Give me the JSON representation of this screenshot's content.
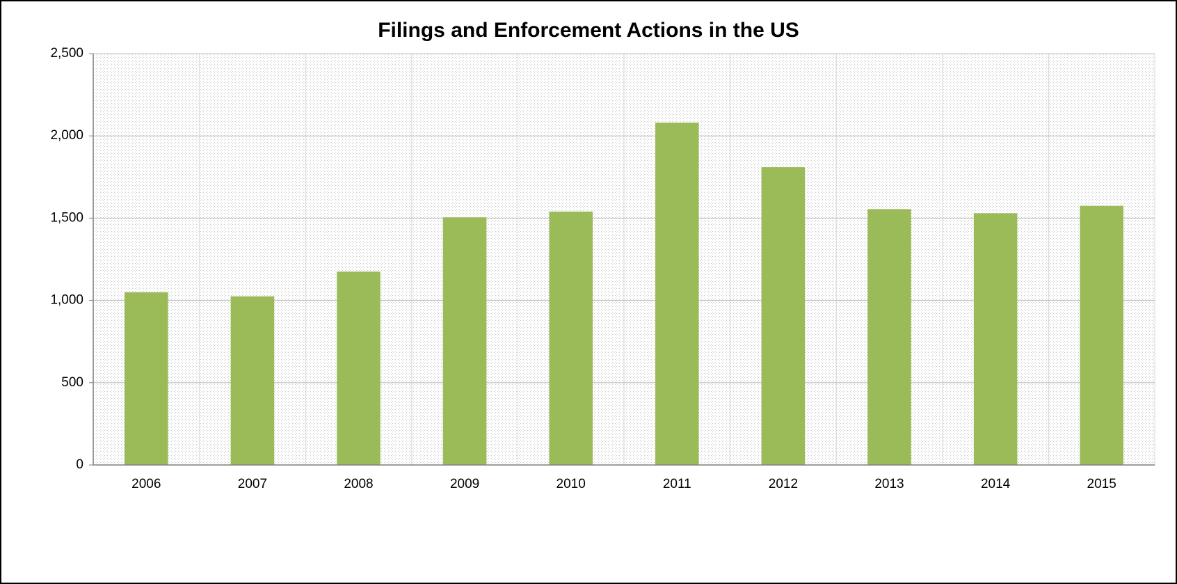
{
  "chart_data": {
    "type": "bar",
    "title": "Filings and Enforcement Actions in the US",
    "categories": [
      "2006",
      "2007",
      "2008",
      "2009",
      "2010",
      "2011",
      "2012",
      "2013",
      "2014",
      "2015"
    ],
    "values": [
      1050,
      1025,
      1175,
      1505,
      1540,
      2080,
      1810,
      1555,
      1530,
      1575
    ],
    "color": "#9bbb59",
    "ylim": [
      0,
      2500
    ],
    "yticks": [
      0,
      500,
      {
        "value": 1000,
        "label": "1,000"
      },
      {
        "value": 1500,
        "label": "1,500"
      },
      {
        "value": 2000,
        "label": "2,000"
      },
      {
        "value": 2500,
        "label": "2,500"
      }
    ],
    "grid": true
  }
}
